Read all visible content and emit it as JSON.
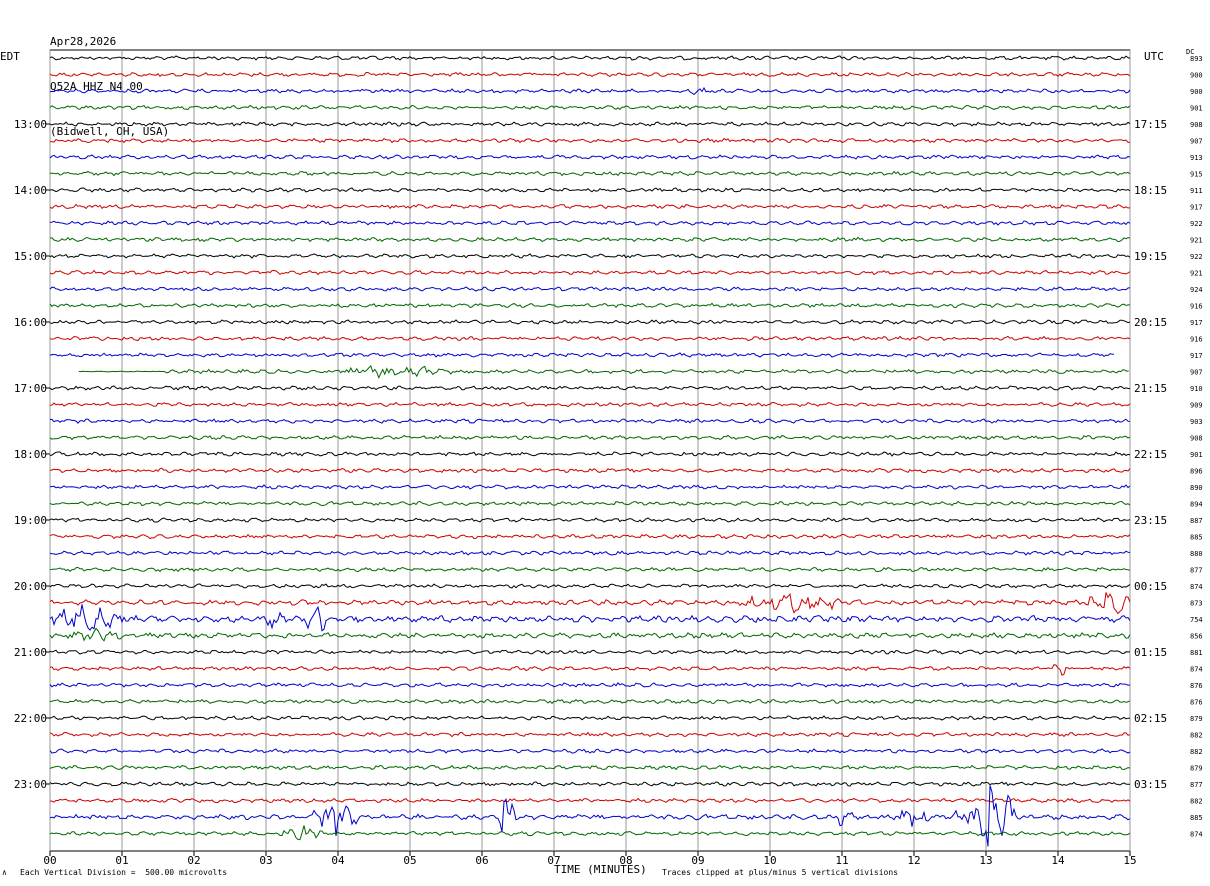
{
  "header": {
    "date": "Apr28,2026",
    "station": "Q52A HHZ N4 00",
    "location": "(Bidwell, OH, USA)"
  },
  "left_zone": "EDT",
  "right_zone": "UTC",
  "dc_label": "DC",
  "footer": {
    "scale": "Each Vertical Division =  500.00 microvolts",
    "clip_note": "Traces clipped at plus/minus 5 vertical divisions",
    "corner_mark": "∧"
  },
  "chart_data": {
    "type": "line",
    "title": "",
    "xlabel": "TIME (MINUTES)",
    "x_ticks": [
      "00",
      "01",
      "02",
      "03",
      "04",
      "05",
      "06",
      "07",
      "08",
      "09",
      "10",
      "11",
      "12",
      "13",
      "14",
      "15"
    ],
    "xlim": [
      0,
      15
    ],
    "grid": true,
    "trace_colors": [
      "#000000",
      "#cc0000",
      "#0000cc",
      "#006600"
    ],
    "left_hour_labels": [
      "13:00",
      "14:00",
      "15:00",
      "16:00",
      "17:00",
      "18:00",
      "19:00",
      "20:00",
      "21:00",
      "22:00",
      "23:00"
    ],
    "right_hour_labels": [
      "17:15",
      "18:15",
      "19:15",
      "20:15",
      "21:15",
      "22:15",
      "23:15",
      "00:15",
      "01:15",
      "02:15",
      "03:15"
    ],
    "dc_offsets": [
      893,
      900,
      900,
      901,
      908,
      907,
      913,
      915,
      911,
      917,
      922,
      921,
      922,
      921,
      924,
      916,
      917,
      916,
      917,
      907,
      910,
      909,
      903,
      908,
      901,
      896,
      890,
      894,
      887,
      885,
      880,
      877,
      874,
      873,
      754,
      856,
      881,
      874,
      876,
      876,
      879,
      882,
      882,
      879,
      877,
      882,
      885,
      874
    ],
    "noise_amplitude": [
      3,
      3,
      3,
      3,
      3,
      3,
      3,
      3,
      3,
      3,
      3,
      3,
      3,
      3,
      3,
      3,
      3,
      3,
      3,
      3,
      3,
      3,
      3,
      3,
      3,
      3,
      3,
      3,
      3,
      3,
      3,
      3,
      3,
      4,
      5,
      4,
      3,
      3,
      3,
      3,
      3,
      3,
      3,
      3,
      3,
      3,
      4,
      3
    ],
    "events": [
      {
        "trace": 2,
        "minute": 9.0,
        "amplitude": 4,
        "duration": 0.2
      },
      {
        "trace": 19,
        "minute": 4.35,
        "amplitude": 5,
        "duration": 0.3
      },
      {
        "trace": 19,
        "minute": 4.8,
        "amplitude": 6,
        "duration": 0.8
      },
      {
        "trace": 33,
        "minute": 10.3,
        "amplitude": 9,
        "duration": 0.8
      },
      {
        "trace": 33,
        "minute": 10.7,
        "amplitude": 7,
        "duration": 0.5
      },
      {
        "trace": 33,
        "minute": 14.7,
        "amplitude": 12,
        "duration": 0.3
      },
      {
        "trace": 34,
        "minute": 0.0,
        "amplitude": 14,
        "duration": 0.15
      },
      {
        "trace": 34,
        "minute": 0.5,
        "amplitude": 12,
        "duration": 0.6
      },
      {
        "trace": 34,
        "minute": 3.7,
        "amplitude": 16,
        "duration": 0.15
      },
      {
        "trace": 34,
        "minute": 3.1,
        "amplitude": 8,
        "duration": 0.2
      },
      {
        "trace": 35,
        "minute": 0.7,
        "amplitude": 6,
        "duration": 0.5
      },
      {
        "trace": 37,
        "minute": 14.05,
        "amplitude": 6,
        "duration": 0.15
      },
      {
        "trace": 46,
        "minute": 3.95,
        "amplitude": 16,
        "duration": 0.35
      },
      {
        "trace": 46,
        "minute": 6.35,
        "amplitude": 30,
        "duration": 0.12
      },
      {
        "trace": 46,
        "minute": 11.05,
        "amplitude": 14,
        "duration": 0.1
      },
      {
        "trace": 46,
        "minute": 12.0,
        "amplitude": 12,
        "duration": 0.2
      },
      {
        "trace": 46,
        "minute": 12.9,
        "amplitude": 12,
        "duration": 0.4
      },
      {
        "trace": 46,
        "minute": 13.0,
        "amplitude": 40,
        "duration": 0.15
      },
      {
        "trace": 46,
        "minute": 13.25,
        "amplitude": 26,
        "duration": 0.15
      },
      {
        "trace": 47,
        "minute": 3.5,
        "amplitude": 7,
        "duration": 0.3
      }
    ],
    "partial_traces": [
      {
        "trace": 18,
        "end_minute": 14.8
      },
      {
        "trace": 19,
        "start_minute": 0.4,
        "flat_until_minute": 1.6
      }
    ]
  }
}
